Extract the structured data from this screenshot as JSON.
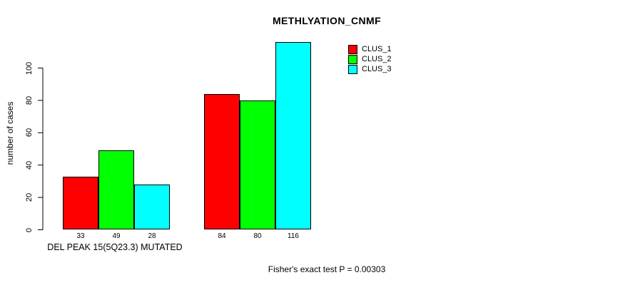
{
  "chart_data": {
    "type": "bar",
    "title": "METHLYATION_CNMF",
    "ylabel": "number of cases",
    "footer": "Fisher's exact test P = 0.00303",
    "yticks": [
      0,
      20,
      40,
      60,
      80,
      100
    ],
    "ylim": [
      0,
      116
    ],
    "grid": false,
    "legend_position": "top-right-inside",
    "series": [
      {
        "name": "CLUS_1",
        "color": "#ff0000"
      },
      {
        "name": "CLUS_2",
        "color": "#00ff00"
      },
      {
        "name": "CLUS_3",
        "color": "#00ffff"
      }
    ],
    "groups": [
      {
        "label": "DEL PEAK 15(5Q23.3) MUTATED",
        "values": [
          33,
          49,
          28
        ]
      },
      {
        "label": "",
        "values": [
          84,
          80,
          116
        ]
      }
    ]
  }
}
